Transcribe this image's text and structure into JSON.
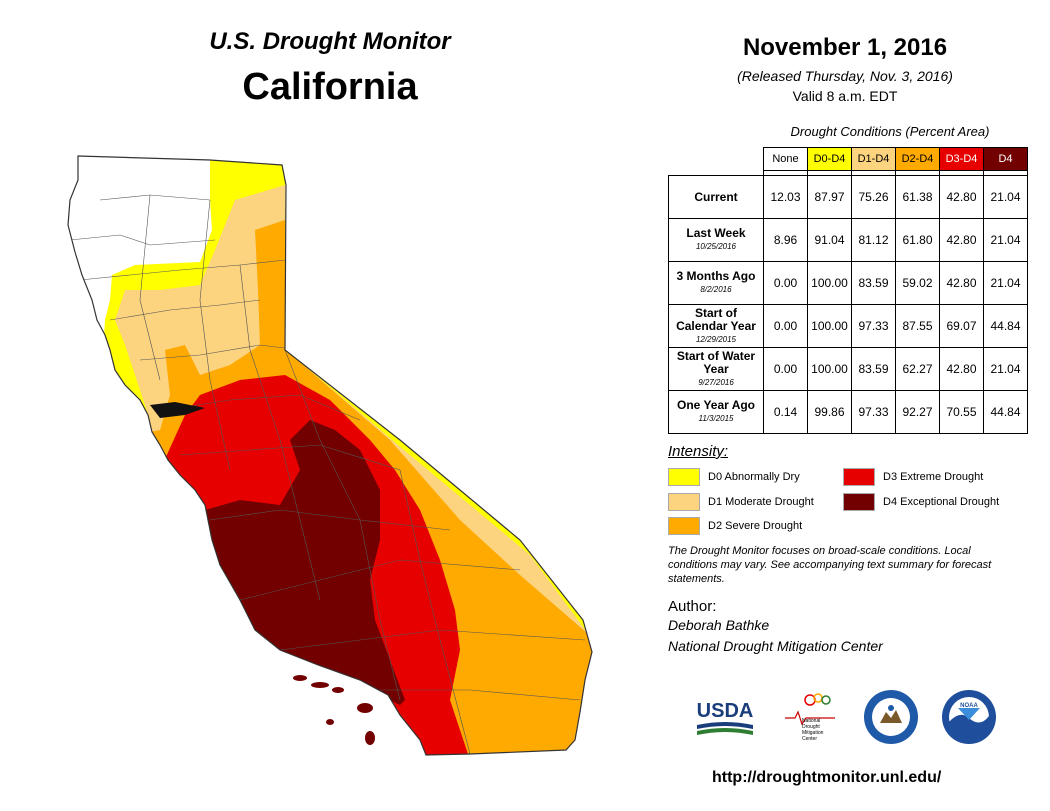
{
  "header": {
    "brand": "U.S. Drought Monitor",
    "state": "California",
    "date": "November 1, 2016",
    "released": "(Released Thursday, Nov. 3, 2016)",
    "valid": "Valid 8 a.m. EDT"
  },
  "table": {
    "caption": "Drought Conditions (Percent Area)",
    "columns": [
      "None",
      "D0-D4",
      "D1-D4",
      "D2-D4",
      "D3-D4",
      "D4"
    ],
    "rows": [
      {
        "label": "Current",
        "sub": "",
        "values": [
          "12.03",
          "87.97",
          "75.26",
          "61.38",
          "42.80",
          "21.04"
        ]
      },
      {
        "label": "Last Week",
        "sub": "10/25/2016",
        "values": [
          "8.96",
          "91.04",
          "81.12",
          "61.80",
          "42.80",
          "21.04"
        ]
      },
      {
        "label": "3 Months Ago",
        "sub": "8/2/2016",
        "values": [
          "0.00",
          "100.00",
          "83.59",
          "59.02",
          "42.80",
          "21.04"
        ]
      },
      {
        "label": "Start of Calendar Year",
        "sub": "12/29/2015",
        "values": [
          "0.00",
          "100.00",
          "97.33",
          "87.55",
          "69.07",
          "44.84"
        ]
      },
      {
        "label": "Start of Water Year",
        "sub": "9/27/2016",
        "values": [
          "0.00",
          "100.00",
          "83.59",
          "62.27",
          "42.80",
          "21.04"
        ]
      },
      {
        "label": "One Year Ago",
        "sub": "11/3/2015",
        "values": [
          "0.14",
          "99.86",
          "97.33",
          "92.27",
          "70.55",
          "44.84"
        ]
      }
    ]
  },
  "legend": {
    "title": "Intensity:",
    "items": [
      {
        "label": "D0 Abnormally Dry",
        "color": "#ffff00"
      },
      {
        "label": "D1 Moderate Drought",
        "color": "#fcd37f"
      },
      {
        "label": "D2 Severe Drought",
        "color": "#ffaa00"
      },
      {
        "label": "D3 Extreme Drought",
        "color": "#e60000"
      },
      {
        "label": "D4 Exceptional Drought",
        "color": "#730000"
      }
    ]
  },
  "note": "The Drought Monitor focuses on broad-scale conditions. Local conditions may vary. See accompanying text summary for forecast statements.",
  "author": {
    "title": "Author:",
    "name": "Deborah Bathke",
    "org": "National Drought Mitigation Center"
  },
  "logos": {
    "usda": "USDA",
    "ndmc": [
      "National",
      "Drought",
      "Mitigation",
      "Center"
    ],
    "noaa": "NOAA"
  },
  "url": "http://droughtmonitor.unl.edu/",
  "colors": {
    "none": "#ffffff",
    "d0": "#ffff00",
    "d1": "#fcd37f",
    "d2": "#ffaa00",
    "d3": "#e60000",
    "d4": "#730000"
  }
}
